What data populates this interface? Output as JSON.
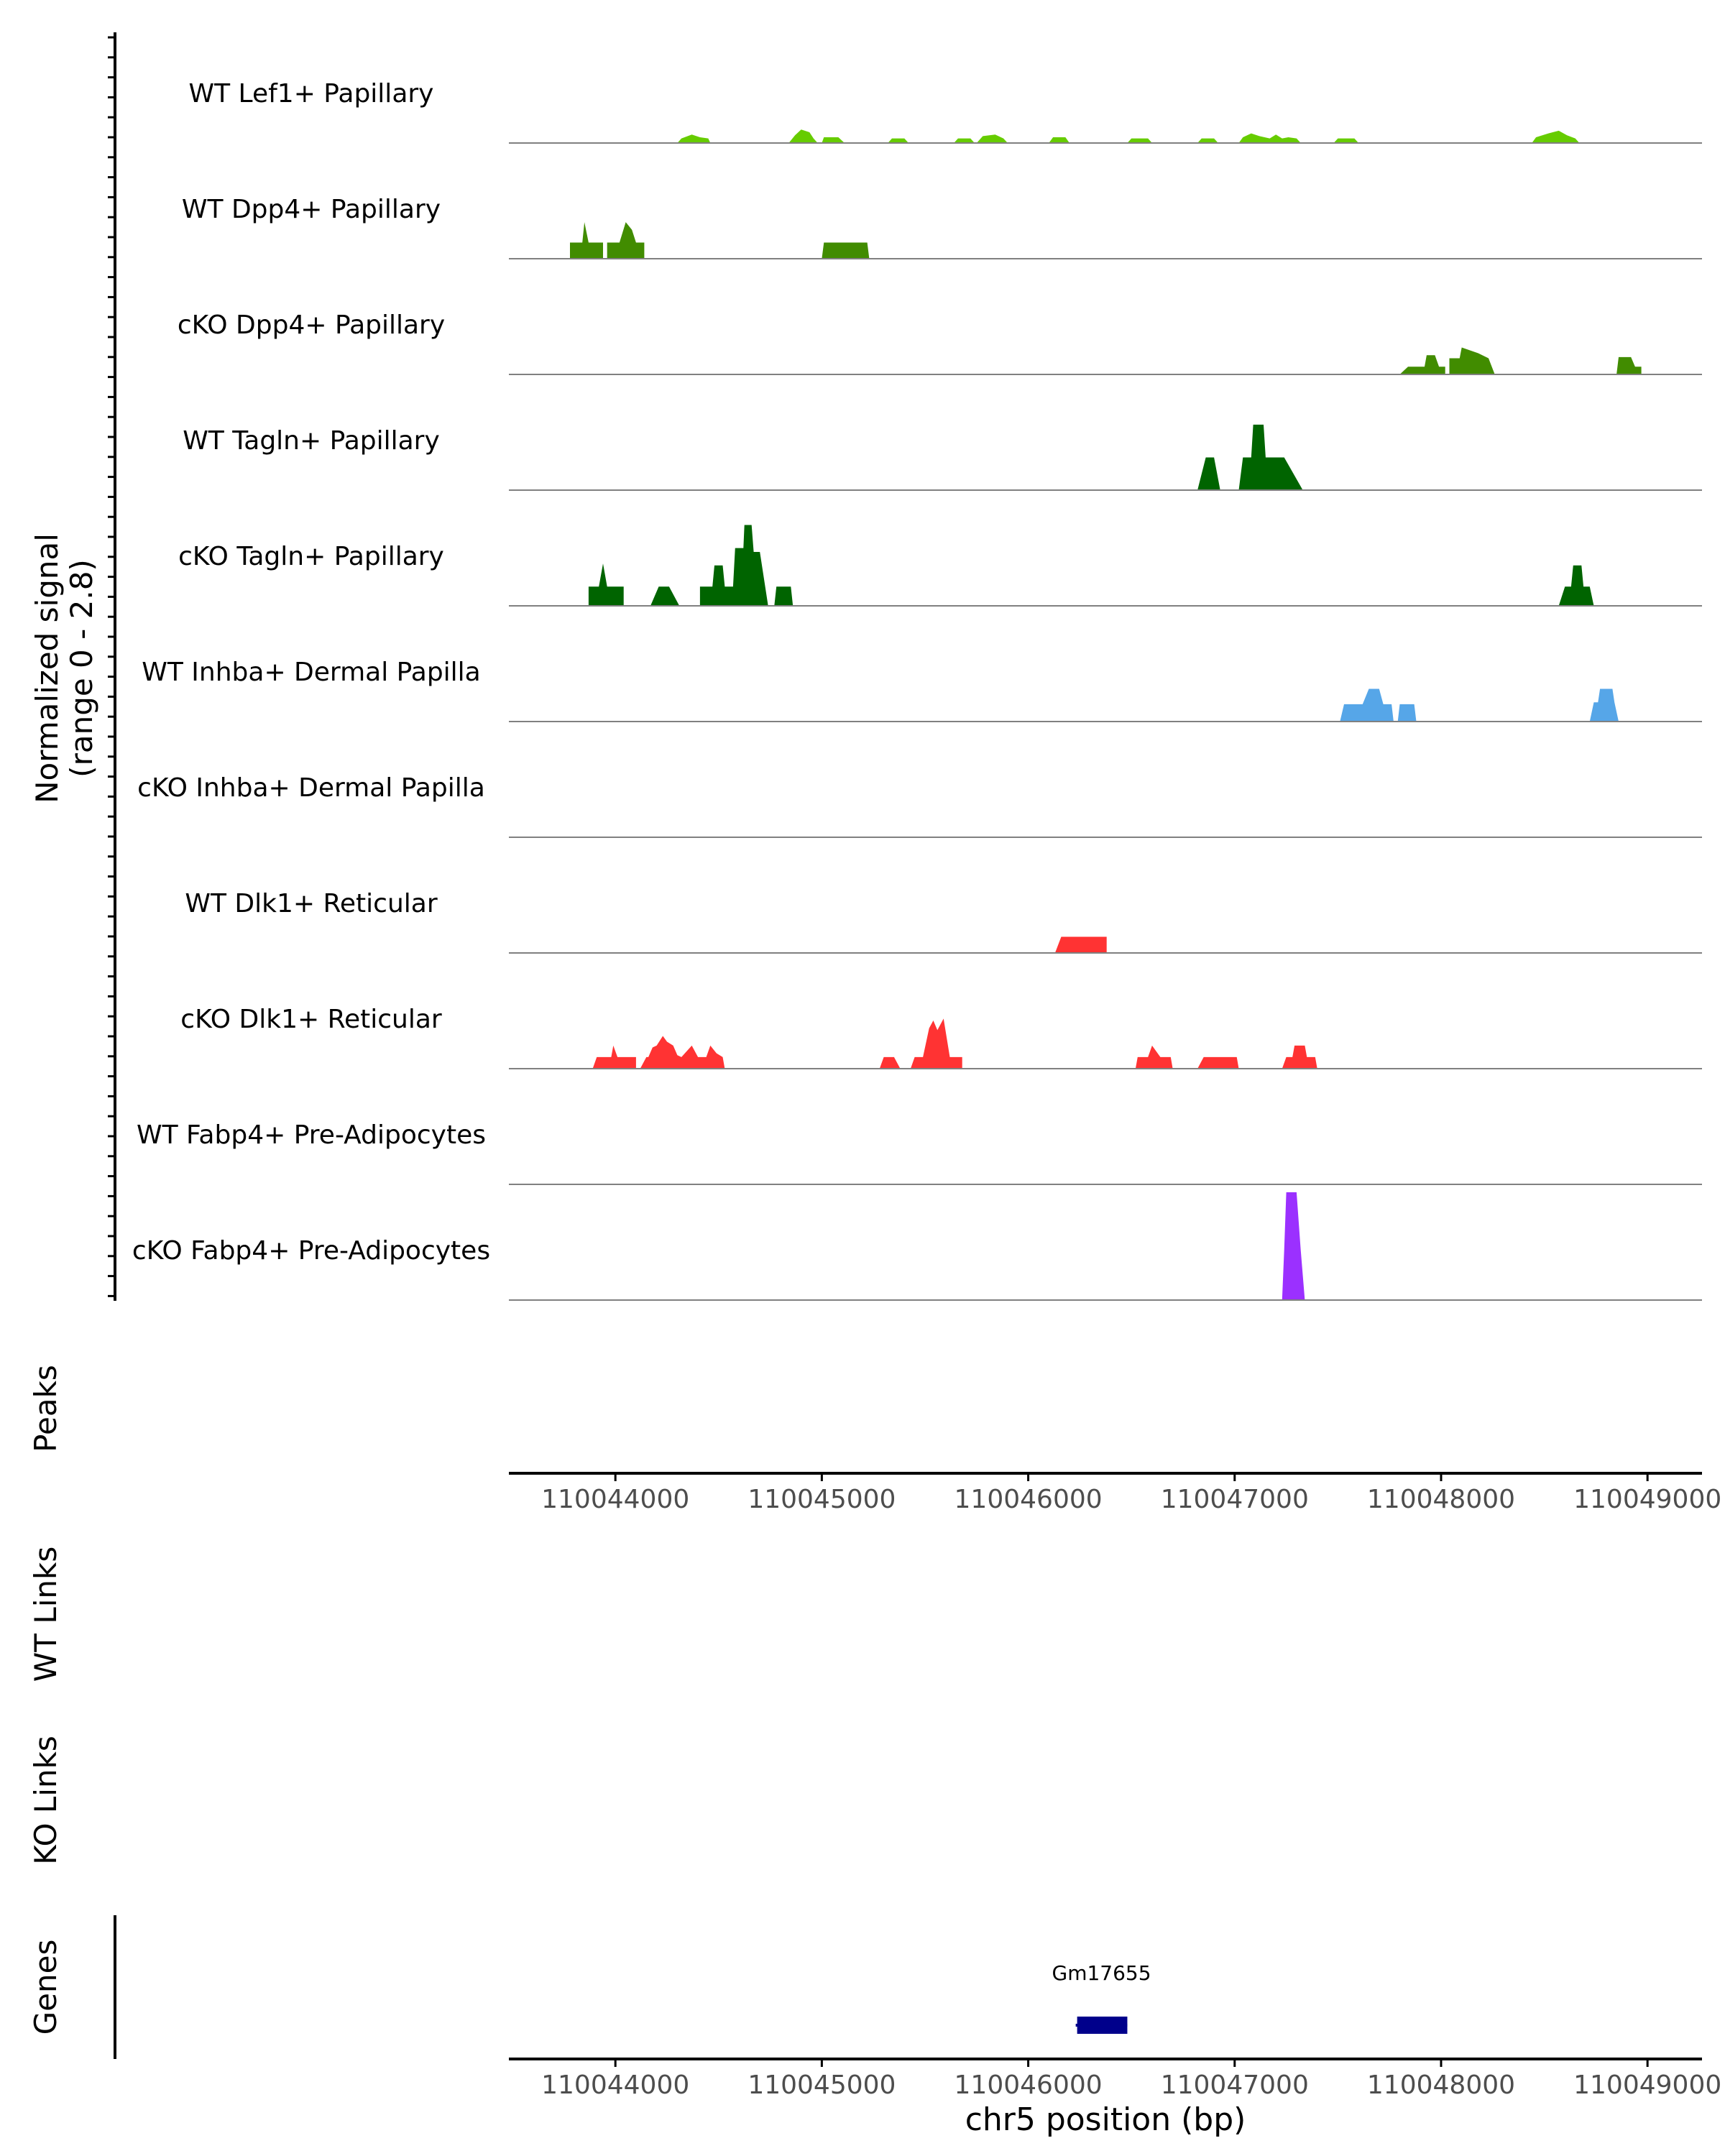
{
  "chart_data": {
    "type": "area",
    "chromosome": "chr5",
    "xlim": [
      110043484,
      110049264
    ],
    "ylim": [
      0,
      2.8
    ],
    "ylabel_lines": [
      "Normalized signal",
      "(range 0 - 2.8)"
    ],
    "xlabel": "chr5 position (bp)",
    "xticks": [
      110044000,
      110045000,
      110046000,
      110047000,
      110048000,
      110049000
    ],
    "xtick_labels": [
      "110044000",
      "110045000",
      "110046000",
      "110047000",
      "110048000",
      "110049000"
    ],
    "track_labels": {
      "peaks": "Peaks",
      "wt_links": "WT Links",
      "ko_links": "KO Links",
      "genes": "Genes"
    },
    "tracks": [
      {
        "name": "WT Lef1+ Papillary",
        "color": "#66CC00",
        "points": [
          [
            110044300,
            0
          ],
          [
            110044320,
            0.12
          ],
          [
            110044370,
            0.22
          ],
          [
            110044410,
            0.15
          ],
          [
            110044450,
            0.12
          ],
          [
            110044460,
            0
          ],
          [
            110044840,
            0
          ],
          [
            110044870,
            0.2
          ],
          [
            110044900,
            0.35
          ],
          [
            110044940,
            0.28
          ],
          [
            110044960,
            0.12
          ],
          [
            110044980,
            0
          ],
          [
            110045000,
            0
          ],
          [
            110045010,
            0.15
          ],
          [
            110045080,
            0.15
          ],
          [
            110045110,
            0
          ],
          [
            110045320,
            0
          ],
          [
            110045340,
            0.12
          ],
          [
            110045400,
            0.12
          ],
          [
            110045420,
            0
          ],
          [
            110045640,
            0
          ],
          [
            110045660,
            0.12
          ],
          [
            110045720,
            0.12
          ],
          [
            110045740,
            0
          ],
          [
            110045750,
            0
          ],
          [
            110045780,
            0.18
          ],
          [
            110045840,
            0.22
          ],
          [
            110045880,
            0.12
          ],
          [
            110045900,
            0
          ],
          [
            110046100,
            0
          ],
          [
            110046120,
            0.15
          ],
          [
            110046180,
            0.15
          ],
          [
            110046200,
            0
          ],
          [
            110046480,
            0
          ],
          [
            110046500,
            0.12
          ],
          [
            110046580,
            0.12
          ],
          [
            110046600,
            0
          ],
          [
            110046820,
            0
          ],
          [
            110046840,
            0.12
          ],
          [
            110046900,
            0.12
          ],
          [
            110046920,
            0
          ],
          [
            110047020,
            0
          ],
          [
            110047040,
            0.15
          ],
          [
            110047080,
            0.25
          ],
          [
            110047120,
            0.18
          ],
          [
            110047170,
            0.12
          ],
          [
            110047200,
            0.22
          ],
          [
            110047230,
            0.12
          ],
          [
            110047260,
            0.15
          ],
          [
            110047300,
            0.12
          ],
          [
            110047320,
            0
          ],
          [
            110047480,
            0
          ],
          [
            110047500,
            0.12
          ],
          [
            110047580,
            0.12
          ],
          [
            110047600,
            0
          ],
          [
            110048440,
            0
          ],
          [
            110048460,
            0.15
          ],
          [
            110048520,
            0.25
          ],
          [
            110048570,
            0.32
          ],
          [
            110048610,
            0.2
          ],
          [
            110048650,
            0.12
          ],
          [
            110048670,
            0
          ]
        ]
      },
      {
        "name": "WT Dpp4+ Papillary",
        "color": "#418C00",
        "points": [
          [
            110043780,
            0
          ],
          [
            110043780,
            0.42
          ],
          [
            110043840,
            0.42
          ],
          [
            110043850,
            0.95
          ],
          [
            110043870,
            0.42
          ],
          [
            110043940,
            0.42
          ],
          [
            110043940,
            0
          ],
          [
            110043960,
            0
          ],
          [
            110043960,
            0.42
          ],
          [
            110044020,
            0.42
          ],
          [
            110044050,
            0.95
          ],
          [
            110044080,
            0.75
          ],
          [
            110044100,
            0.42
          ],
          [
            110044140,
            0.42
          ],
          [
            110044140,
            0
          ],
          [
            110045000,
            0
          ],
          [
            110045010,
            0.42
          ],
          [
            110045220,
            0.42
          ],
          [
            110045230,
            0
          ]
        ]
      },
      {
        "name": "cKO Dpp4+ Papillary",
        "color": "#418C00",
        "points": [
          [
            110047800,
            0
          ],
          [
            110047840,
            0.2
          ],
          [
            110047920,
            0.2
          ],
          [
            110047930,
            0.5
          ],
          [
            110047970,
            0.5
          ],
          [
            110047990,
            0.2
          ],
          [
            110048020,
            0.2
          ],
          [
            110048020,
            0
          ],
          [
            110048040,
            0
          ],
          [
            110048040,
            0.42
          ],
          [
            110048090,
            0.42
          ],
          [
            110048100,
            0.7
          ],
          [
            110048180,
            0.55
          ],
          [
            110048230,
            0.42
          ],
          [
            110048260,
            0
          ],
          [
            110048850,
            0
          ],
          [
            110048860,
            0.45
          ],
          [
            110048920,
            0.45
          ],
          [
            110048940,
            0.2
          ],
          [
            110048970,
            0.2
          ],
          [
            110048970,
            0
          ]
        ]
      },
      {
        "name": "WT Tagln+ Papillary",
        "color": "#006400",
        "points": [
          [
            110046820,
            0
          ],
          [
            110046860,
            0.85
          ],
          [
            110046900,
            0.85
          ],
          [
            110046930,
            0
          ],
          [
            110047020,
            0
          ],
          [
            110047040,
            0.85
          ],
          [
            110047080,
            0.85
          ],
          [
            110047090,
            1.7
          ],
          [
            110047140,
            1.7
          ],
          [
            110047150,
            0.85
          ],
          [
            110047240,
            0.85
          ],
          [
            110047330,
            0
          ]
        ]
      },
      {
        "name": "cKO Tagln+ Papillary",
        "color": "#006400",
        "points": [
          [
            110043870,
            0
          ],
          [
            110043870,
            0.5
          ],
          [
            110043920,
            0.5
          ],
          [
            110043940,
            1.1
          ],
          [
            110043960,
            0.5
          ],
          [
            110044040,
            0.5
          ],
          [
            110044040,
            0
          ],
          [
            110044170,
            0
          ],
          [
            110044210,
            0.5
          ],
          [
            110044260,
            0.5
          ],
          [
            110044310,
            0
          ],
          [
            110044410,
            0
          ],
          [
            110044410,
            0.5
          ],
          [
            110044470,
            0.5
          ],
          [
            110044480,
            1.05
          ],
          [
            110044520,
            1.05
          ],
          [
            110044530,
            0.5
          ],
          [
            110044570,
            0.5
          ],
          [
            110044580,
            1.5
          ],
          [
            110044620,
            1.5
          ],
          [
            110044625,
            2.1
          ],
          [
            110044660,
            2.1
          ],
          [
            110044670,
            1.4
          ],
          [
            110044700,
            1.4
          ],
          [
            110044740,
            0
          ],
          [
            110044770,
            0
          ],
          [
            110044780,
            0.5
          ],
          [
            110044850,
            0.5
          ],
          [
            110044860,
            0
          ],
          [
            110048570,
            0
          ],
          [
            110048600,
            0.5
          ],
          [
            110048630,
            0.5
          ],
          [
            110048640,
            1.05
          ],
          [
            110048680,
            1.05
          ],
          [
            110048690,
            0.5
          ],
          [
            110048720,
            0.5
          ],
          [
            110048740,
            0
          ]
        ]
      },
      {
        "name": "WT Inhba+ Dermal Papilla",
        "color": "#56A6E8",
        "points": [
          [
            110047510,
            0
          ],
          [
            110047530,
            0.45
          ],
          [
            110047620,
            0.45
          ],
          [
            110047650,
            0.85
          ],
          [
            110047700,
            0.85
          ],
          [
            110047720,
            0.45
          ],
          [
            110047760,
            0.45
          ],
          [
            110047770,
            0
          ],
          [
            110047790,
            0
          ],
          [
            110047800,
            0.45
          ],
          [
            110047870,
            0.45
          ],
          [
            110047880,
            0
          ],
          [
            110048720,
            0
          ],
          [
            110048740,
            0.5
          ],
          [
            110048760,
            0.5
          ],
          [
            110048770,
            0.85
          ],
          [
            110048830,
            0.85
          ],
          [
            110048840,
            0.5
          ],
          [
            110048860,
            0
          ]
        ]
      },
      {
        "name": "cKO Inhba+ Dermal Papilla",
        "color": "#7FB8E8",
        "points": []
      },
      {
        "name": "WT Dlk1+ Reticular",
        "color": "#FF3333",
        "points": [
          [
            110046130,
            0
          ],
          [
            110046160,
            0.42
          ],
          [
            110046380,
            0.42
          ],
          [
            110046380,
            0
          ]
        ]
      },
      {
        "name": "cKO Dlk1+ Reticular",
        "color": "#FF3333",
        "points": [
          [
            110043890,
            0
          ],
          [
            110043910,
            0.3
          ],
          [
            110043980,
            0.3
          ],
          [
            110043990,
            0.6
          ],
          [
            110044010,
            0.3
          ],
          [
            110044100,
            0.3
          ],
          [
            110044100,
            0
          ],
          [
            110044120,
            0
          ],
          [
            110044150,
            0.3
          ],
          [
            110044160,
            0.3
          ],
          [
            110044180,
            0.55
          ],
          [
            110044200,
            0.6
          ],
          [
            110044230,
            0.85
          ],
          [
            110044250,
            0.7
          ],
          [
            110044280,
            0.6
          ],
          [
            110044300,
            0.35
          ],
          [
            110044320,
            0.3
          ],
          [
            110044370,
            0.6
          ],
          [
            110044400,
            0.3
          ],
          [
            110044440,
            0.3
          ],
          [
            110044460,
            0.6
          ],
          [
            110044490,
            0.4
          ],
          [
            110044520,
            0.3
          ],
          [
            110044530,
            0
          ],
          [
            110045280,
            0
          ],
          [
            110045300,
            0.3
          ],
          [
            110045350,
            0.3
          ],
          [
            110045380,
            0
          ],
          [
            110045430,
            0
          ],
          [
            110045450,
            0.3
          ],
          [
            110045490,
            0.3
          ],
          [
            110045520,
            1.05
          ],
          [
            110045540,
            1.25
          ],
          [
            110045560,
            1.0
          ],
          [
            110045590,
            1.3
          ],
          [
            110045620,
            0.3
          ],
          [
            110045680,
            0.3
          ],
          [
            110045680,
            0
          ],
          [
            110046520,
            0
          ],
          [
            110046530,
            0.3
          ],
          [
            110046580,
            0.3
          ],
          [
            110046600,
            0.6
          ],
          [
            110046640,
            0.3
          ],
          [
            110046690,
            0.3
          ],
          [
            110046700,
            0
          ],
          [
            110046820,
            0
          ],
          [
            110046850,
            0.3
          ],
          [
            110046890,
            0.3
          ],
          [
            110046900,
            0.3
          ],
          [
            110046930,
            0.3
          ],
          [
            110046960,
            0.3
          ],
          [
            110047010,
            0.3
          ],
          [
            110047020,
            0
          ],
          [
            110047230,
            0
          ],
          [
            110047250,
            0.3
          ],
          [
            110047280,
            0.3
          ],
          [
            110047290,
            0.6
          ],
          [
            110047340,
            0.6
          ],
          [
            110047350,
            0.3
          ],
          [
            110047390,
            0.3
          ],
          [
            110047400,
            0
          ]
        ]
      },
      {
        "name": "WT Fabp4+ Pre-Adipocytes",
        "color": "#C840E0",
        "points": []
      },
      {
        "name": "cKO Fabp4+ Pre-Adipocytes",
        "color": "#9B30FF",
        "points": [
          [
            110047230,
            0
          ],
          [
            110047240,
            1.3
          ],
          [
            110047250,
            2.8
          ],
          [
            110047300,
            2.8
          ],
          [
            110047320,
            1.3
          ],
          [
            110047340,
            0
          ]
        ]
      }
    ],
    "genes": [
      {
        "name": "Gm17655",
        "start": 110046230,
        "end": 110046480,
        "color": "#00008B"
      }
    ]
  }
}
